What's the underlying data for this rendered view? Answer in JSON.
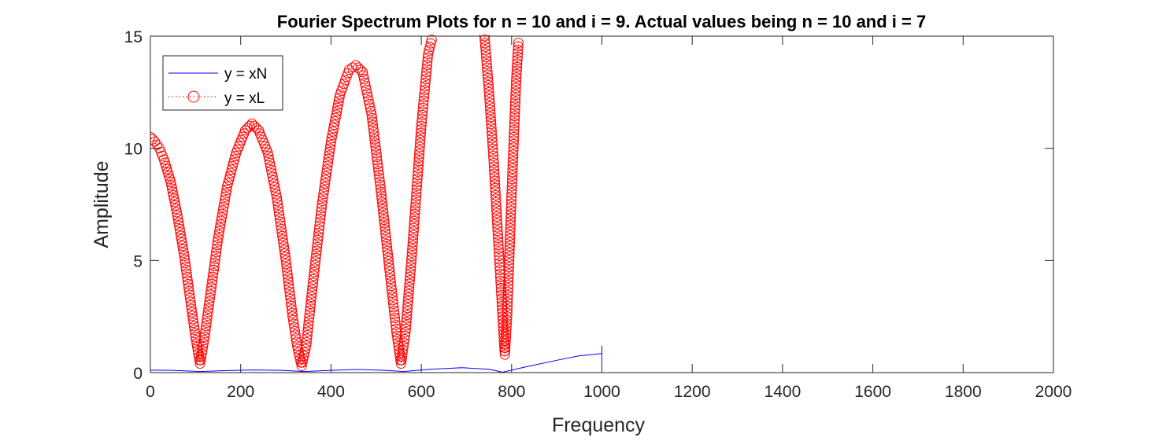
{
  "chart_data": {
    "type": "line",
    "title": "Fourier Spectrum Plots for n = 10 and i = 9. Actual values being n = 10 and i = 7",
    "xlabel": "Frequency",
    "ylabel": "Amplitude",
    "xlim": [
      0,
      2000
    ],
    "ylim": [
      0,
      15
    ],
    "xticks": [
      0,
      200,
      400,
      600,
      800,
      1000,
      1200,
      1400,
      1600,
      1800,
      2000
    ],
    "yticks": [
      0,
      5,
      10,
      15
    ],
    "grid": false,
    "legend_position": "top-left",
    "series": [
      {
        "name": "y = xN",
        "color": "#0000ff",
        "style": "solid-line",
        "x": [
          0,
          50,
          110,
          170,
          230,
          290,
          340,
          400,
          460,
          520,
          560,
          620,
          690,
          750,
          780,
          830,
          900,
          950,
          1000,
          1000,
          1000
        ],
        "y": [
          0.11,
          0.1,
          0.05,
          0.09,
          0.12,
          0.1,
          0.05,
          0.1,
          0.14,
          0.1,
          0.05,
          0.15,
          0.22,
          0.15,
          0.02,
          0.25,
          0.55,
          0.75,
          0.85,
          1.2,
          0.2
        ]
      },
      {
        "name": "y = xL",
        "color": "#ff0000",
        "style": "dotted-circles",
        "x": [
          0,
          10,
          20,
          30,
          45,
          60,
          75,
          90,
          100,
          110,
          120,
          135,
          150,
          170,
          190,
          210,
          225,
          240,
          260,
          280,
          300,
          315,
          325,
          335,
          345,
          360,
          380,
          400,
          420,
          440,
          455,
          470,
          490,
          510,
          530,
          545,
          555,
          565,
          580,
          600,
          615,
          625,
          740,
          750,
          760,
          770,
          780,
          785,
          790,
          800,
          810,
          815
        ],
        "y": [
          10.5,
          10.3,
          10.0,
          9.5,
          8.5,
          7.0,
          5.2,
          3.0,
          1.6,
          0.4,
          1.6,
          3.8,
          6.0,
          8.3,
          9.8,
          10.8,
          11.1,
          10.8,
          9.8,
          7.8,
          5.0,
          2.5,
          1.2,
          0.3,
          1.2,
          4.0,
          7.5,
          10.3,
          12.4,
          13.5,
          13.7,
          13.4,
          11.5,
          8.2,
          4.5,
          1.8,
          0.4,
          1.8,
          5.5,
          11.0,
          14.2,
          15.0,
          15.0,
          12.5,
          9.5,
          6.0,
          2.5,
          0.8,
          2.5,
          8.0,
          13.0,
          14.7
        ]
      }
    ]
  }
}
